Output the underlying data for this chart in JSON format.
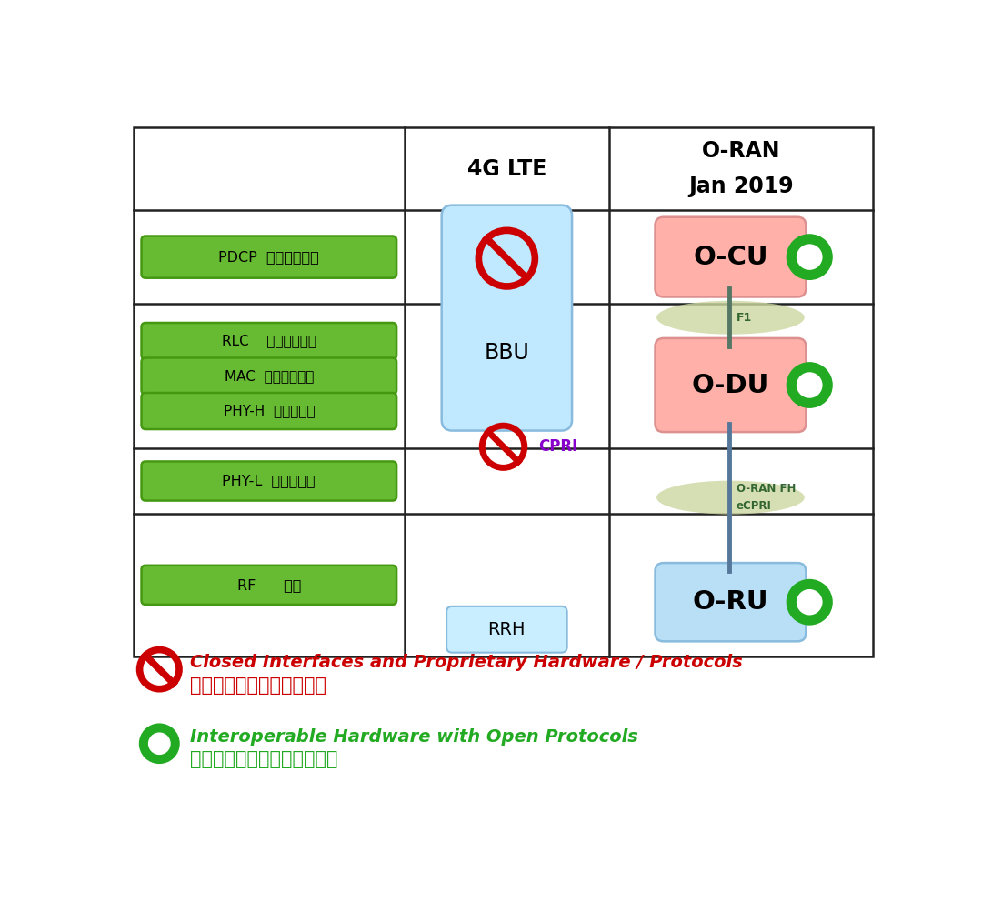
{
  "bg_color": "#ffffff",
  "grid_color": "#222222",
  "green_box_facecolor": "#66bb33",
  "green_box_edgecolor": "#449911",
  "bbu_facecolor": "#c0e8ff",
  "bbu_edgecolor": "#88bbdd",
  "rrh_facecolor": "#c8eeff",
  "rrh_edgecolor": "#88bbdd",
  "ocu_facecolor": "#ffb0a8",
  "ocu_edgecolor": "#dd9090",
  "odu_facecolor": "#ffb0a8",
  "odu_edgecolor": "#dd9090",
  "oru_facecolor": "#b8dff5",
  "oru_edgecolor": "#88bbdd",
  "ellipse_facecolor": "#ccd8a0",
  "connector_color": "#557766",
  "no_sign_color": "#cc0000",
  "cpri_color": "#8800cc",
  "green_ring_color": "#22aa22",
  "f1_color": "#336633",
  "oran_fh_color": "#336633",
  "legend_red": "#cc0000",
  "legend_green": "#22aa22",
  "col2_header": "4G LTE",
  "col3_header_line1": "O-RAN",
  "col3_header_line2": "Jan 2019",
  "bbu_label": "BBU",
  "rrh_label": "RRH",
  "ocu_label": "O-CU",
  "odu_label": "O-DU",
  "oru_label": "O-RU",
  "cpri_label": "CPRI",
  "f1_label": "F1",
  "oran_fh_line1": "O-RAN FH",
  "oran_fh_line2": "eCPRI",
  "pdcp_label": "PDCP  分组数据汇聚",
  "rlc_label": "RLC    无线链路控制",
  "mac_label": "MAC  媒体接入控制",
  "phyh_label": "PHY-H  物理层上层",
  "phyl_label": "PHY-L  物理层下层",
  "rf_label": "RF      射频",
  "legend1_en": "Closed Interfaces and Proprietary Hardware / Protocols",
  "legend1_cn": "封闭接口和专有硬件及协议",
  "legend2_en": "Interoperable Hardware with Open Protocols",
  "legend2_cn": "使用开放协议的可互操作硬件"
}
